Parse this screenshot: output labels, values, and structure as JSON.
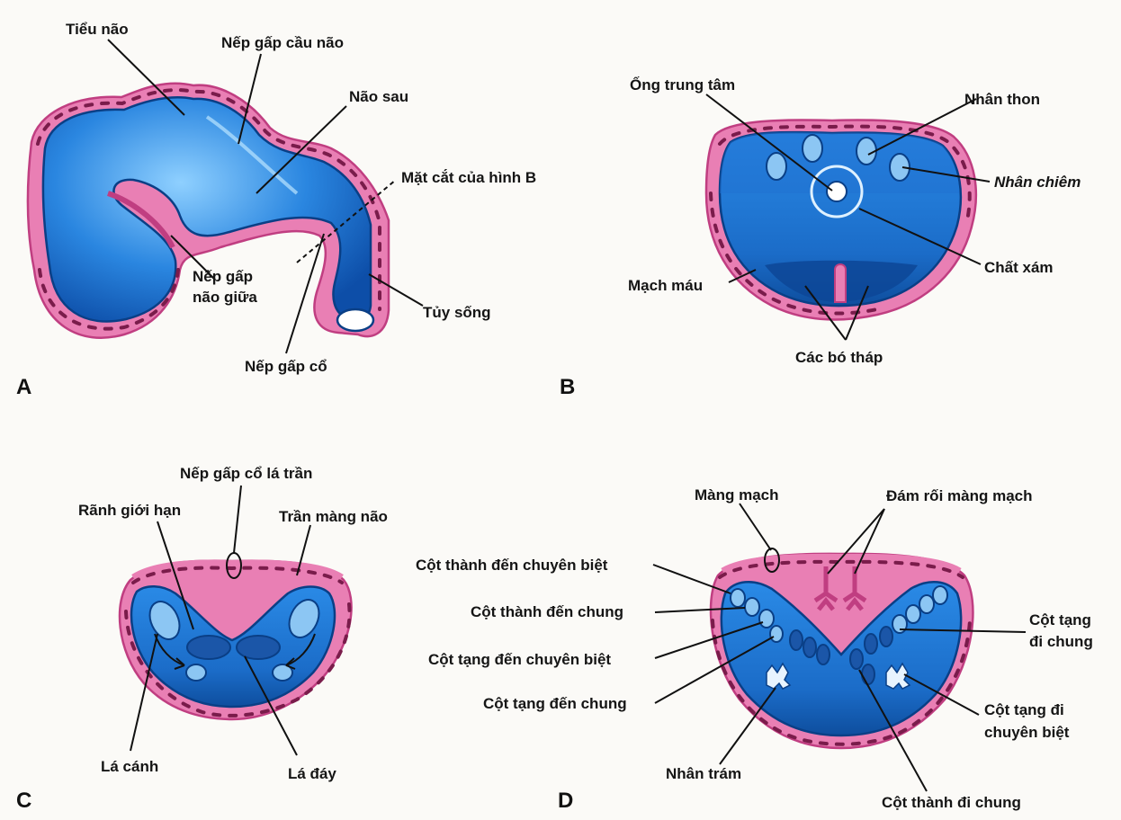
{
  "panels": {
    "A": "A",
    "B": "B",
    "C": "C",
    "D": "D"
  },
  "labels_A": {
    "tieu_nao": "Tiểu não",
    "nep_gap_cau_nao": "Nếp gấp cầu não",
    "nao_sau": "Não sau",
    "mat_cat": "Mặt cắt của hình B",
    "nep_gap_nao_giua_1": "Nếp gấp",
    "nep_gap_nao_giua_2": "não giữa",
    "tuy_song": "Tủy sống",
    "nep_gap_co": "Nếp gấp cổ"
  },
  "labels_B": {
    "ong_trung_tam": "Ống trung tâm",
    "nhan_thon": "Nhân thon",
    "nhan_chiem": "Nhân chiêm",
    "mach_mau": "Mạch máu",
    "chat_xam": "Chất xám",
    "cac_bo_thap": "Các bó tháp"
  },
  "labels_C": {
    "nep_gap_co_la_tran": "Nếp gấp cổ lá trần",
    "ranh_gioi_han": "Rãnh giới hạn",
    "tran_mang_nao": "Trần màng não",
    "la_canh": "Lá cánh",
    "la_day": "Lá đáy"
  },
  "labels_D": {
    "mang_mach": "Màng mạch",
    "dam_roi_mang_mach": "Đám rối màng mạch",
    "cot_thanh_den_chuyen_biet": "Cột thành đến chuyên biệt",
    "cot_thanh_den_chung": "Cột thành đến chung",
    "cot_tang_den_chuyen_biet": "Cột tạng đến chuyên biệt",
    "cot_tang_den_chung": "Cột tạng đến chung",
    "nhan_tram": "Nhân trám",
    "cot_thanh_di_chung": "Cột thành đi chung",
    "cot_tang_di_chung_1": "Cột tạng",
    "cot_tang_di_chung_2": "đi chung",
    "cot_tang_di_chuyen_biet_1": "Cột tạng đi",
    "cot_tang_di_chuyen_biet_2": "chuyên biệt"
  },
  "colors": {
    "tissue_pink": "#e97fb4",
    "neural_blue": "#1f6fd0",
    "nucleus_light": "#8cc6f3"
  }
}
